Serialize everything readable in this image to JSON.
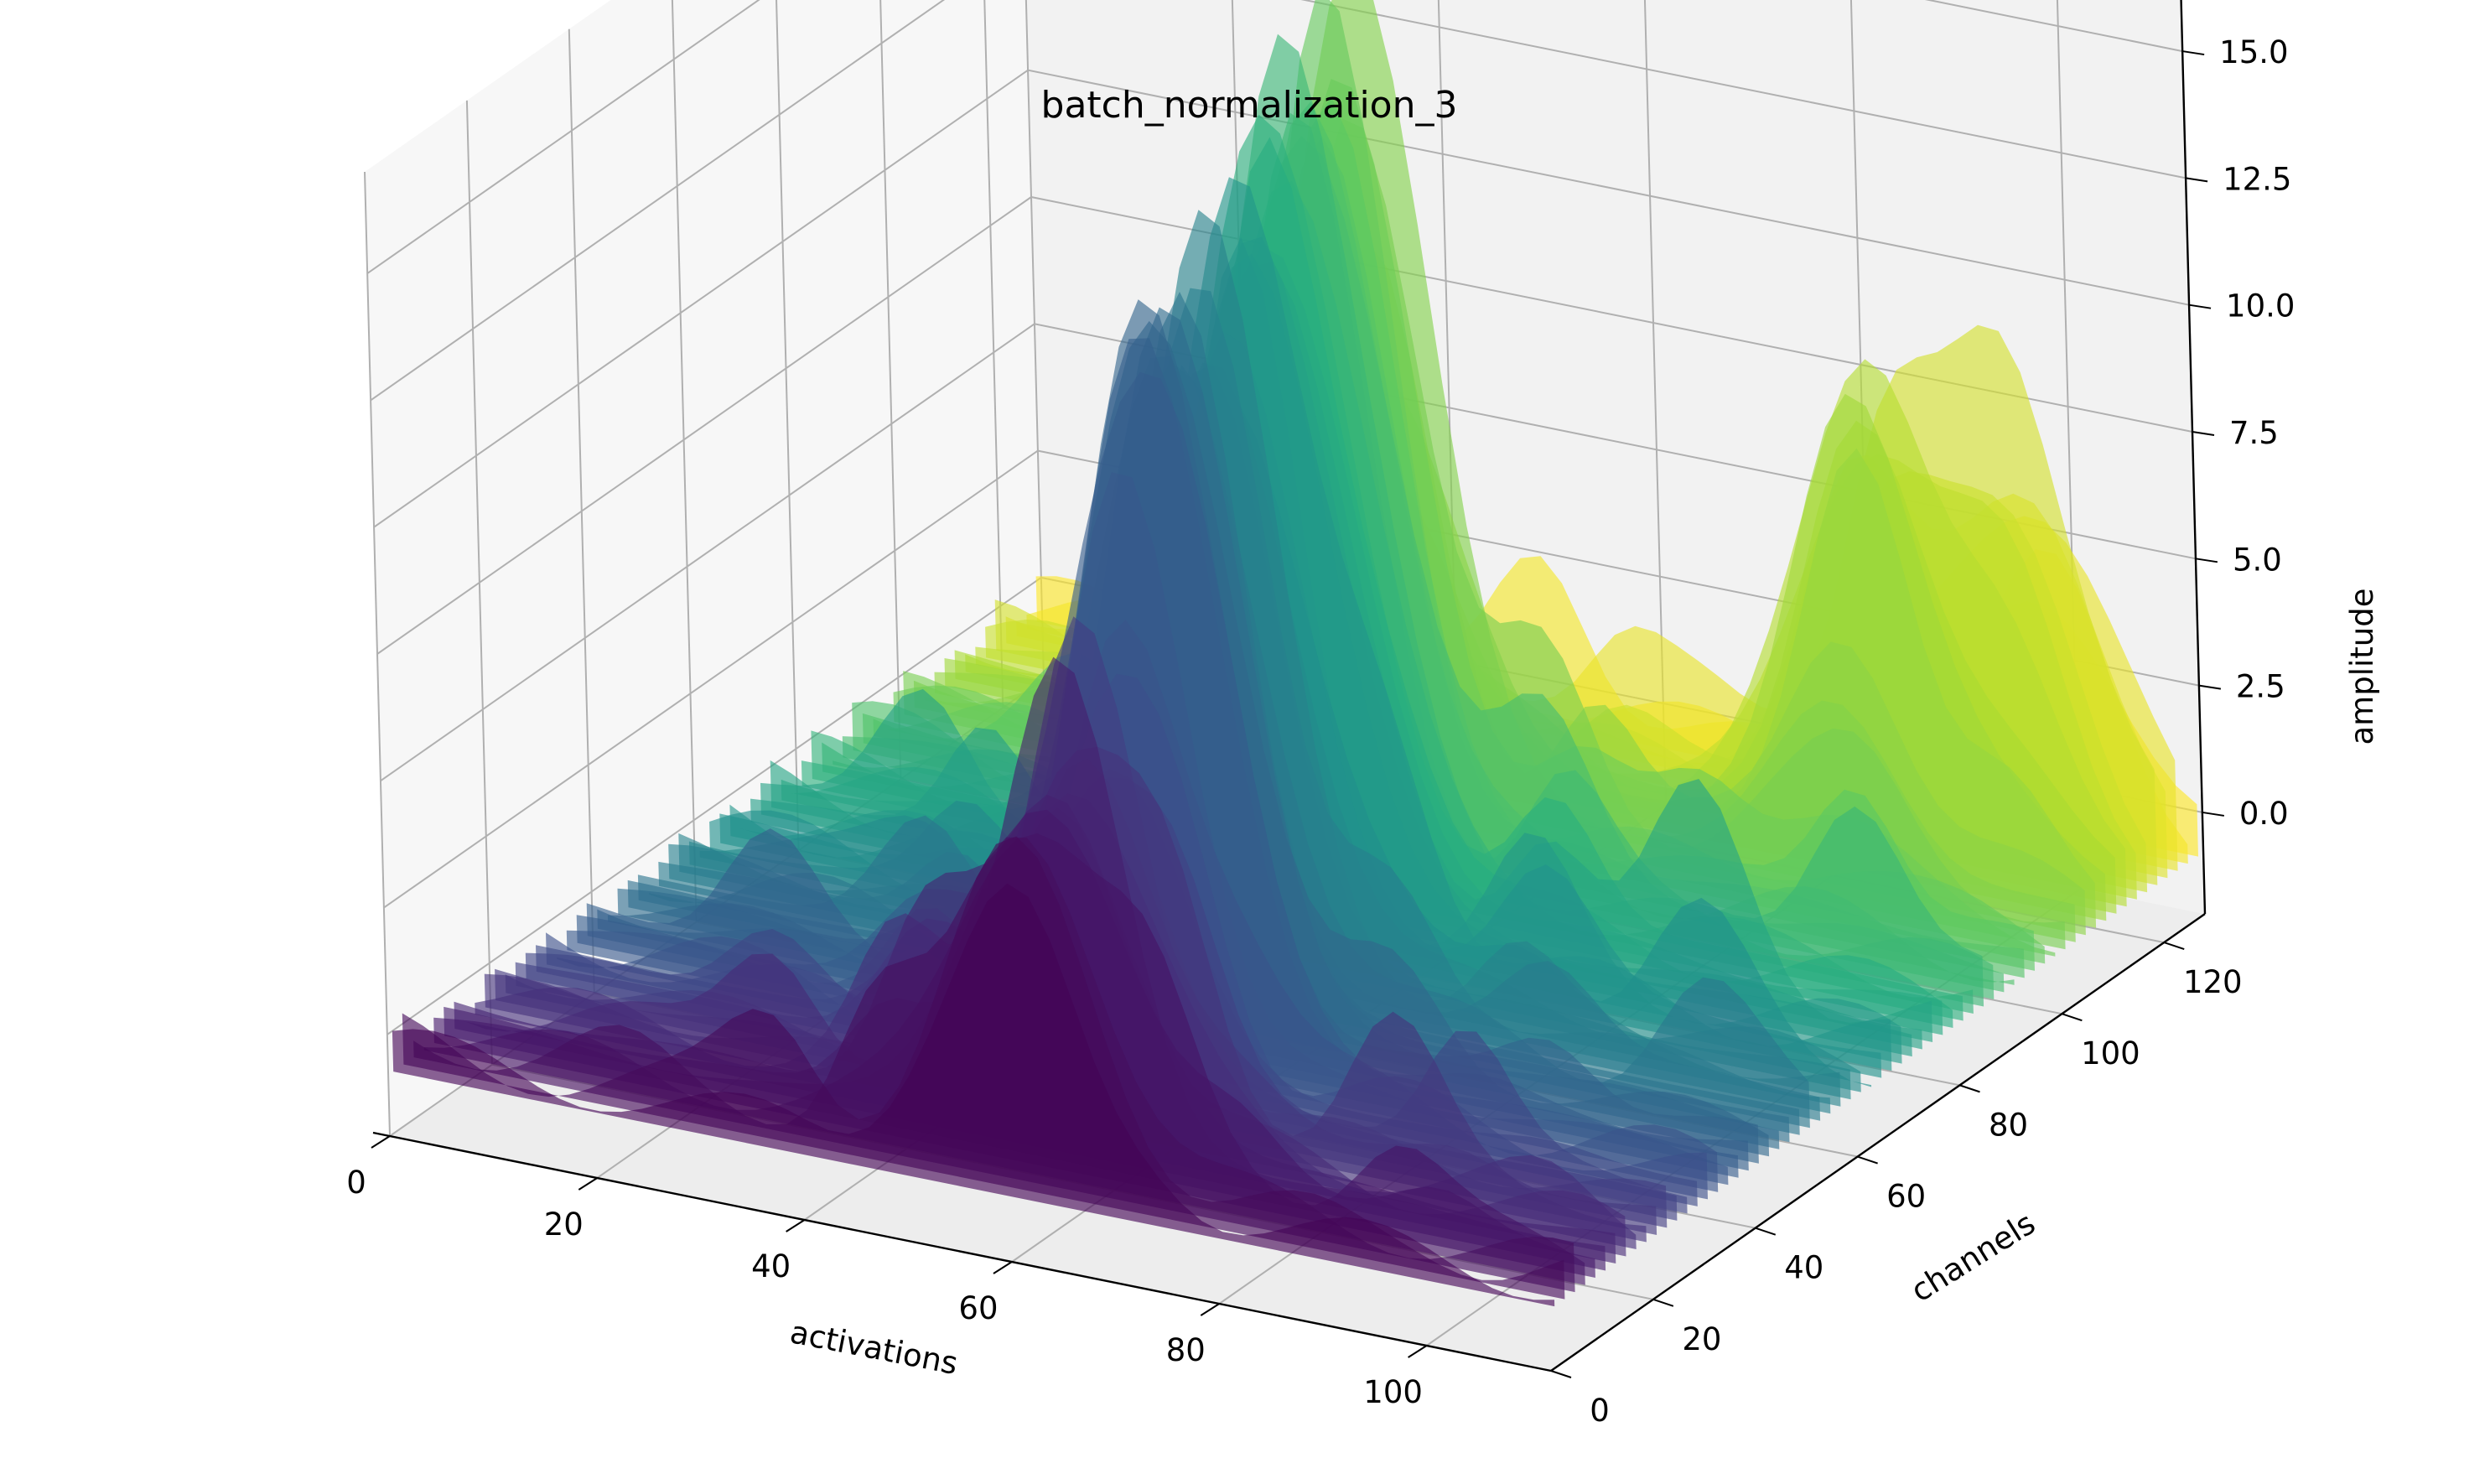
{
  "chart_data": {
    "type": "area",
    "title": "batch_normalization_3",
    "xlabel": "activations",
    "ylabel": "channels",
    "zlabel": "amplitude",
    "xlim": [
      0,
      112
    ],
    "ylim": [
      0,
      128
    ],
    "zlim": [
      -2,
      17
    ],
    "x_ticks": [
      "0",
      "20",
      "40",
      "60",
      "80",
      "100"
    ],
    "y_ticks": [
      "0",
      "20",
      "40",
      "60",
      "80",
      "100",
      "120"
    ],
    "z_ticks": [
      "0.0",
      "2.5",
      "5.0",
      "7.5",
      "10.0",
      "12.5",
      "15.0"
    ],
    "colormap": "viridis",
    "grid": true,
    "num_channels": 128,
    "num_activations": 112,
    "dominant_peaks": [
      {
        "channel": 5,
        "activation": 60,
        "amplitude": 6
      },
      {
        "channel": 20,
        "activation": 58,
        "amplitude": 6
      },
      {
        "channel": 40,
        "activation": 55,
        "amplitude": 13
      },
      {
        "channel": 55,
        "activation": 52,
        "amplitude": 10
      },
      {
        "channel": 70,
        "activation": 50,
        "amplitude": 11
      },
      {
        "channel": 85,
        "activation": 47,
        "amplitude": 12
      },
      {
        "channel": 100,
        "activation": 45,
        "amplitude": 13
      },
      {
        "channel": 112,
        "activation": 88,
        "amplitude": 8
      },
      {
        "channel": 120,
        "activation": 100,
        "amplitude": 6
      }
    ]
  }
}
